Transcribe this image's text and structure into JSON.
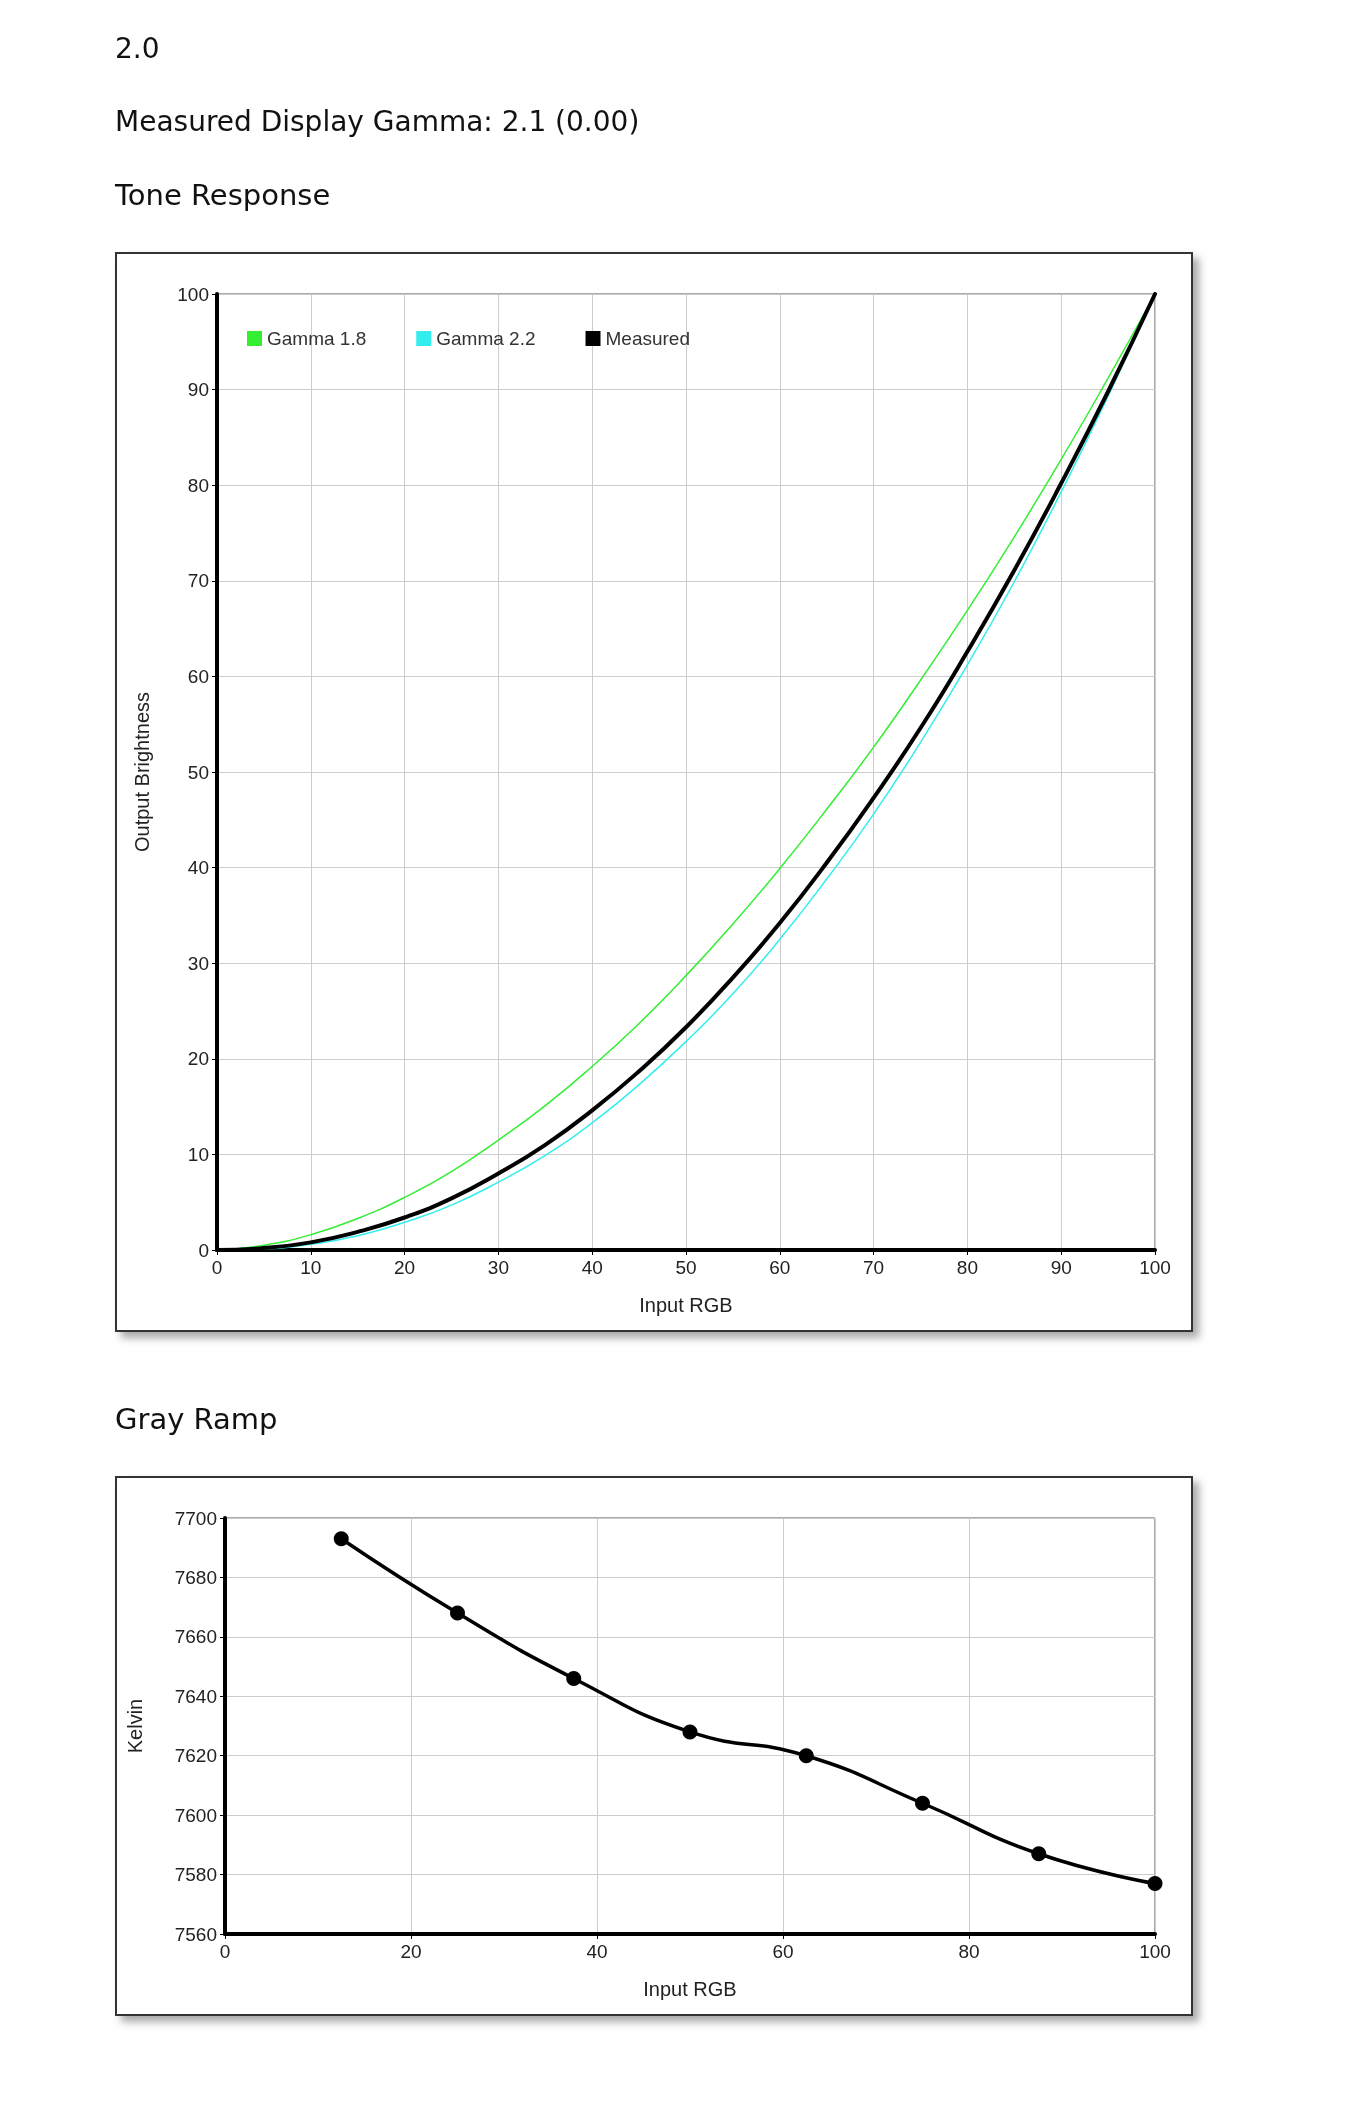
{
  "chart_data": [
    {
      "type": "line",
      "title": "Tone Response",
      "annotations": [
        "2.0",
        "Measured Display Gamma: 2.1 (0.00)"
      ],
      "xlabel": "Input RGB",
      "ylabel": "Output Brightness",
      "x": [
        0,
        5,
        10,
        15,
        20,
        25,
        30,
        35,
        40,
        45,
        50,
        55,
        60,
        65,
        70,
        75,
        80,
        85,
        90,
        95,
        100
      ],
      "series": [
        {
          "name": "Gamma 1.8",
          "color": "#33ee33",
          "values": [
            0,
            0.5,
            1.6,
            3.3,
            5.5,
            8.2,
            11.5,
            15.1,
            19.2,
            23.7,
            28.7,
            34.1,
            39.9,
            46.1,
            52.6,
            59.6,
            66.9,
            74.6,
            82.7,
            91.2,
            100
          ]
        },
        {
          "name": "Gamma 2.2",
          "color": "#33eeee",
          "values": [
            0,
            0.1,
            0.6,
            1.5,
            2.9,
            4.7,
            7.1,
            9.9,
            13.3,
            17.3,
            21.8,
            26.8,
            32.5,
            38.8,
            45.6,
            53.1,
            61.2,
            69.9,
            79.3,
            89.3,
            100
          ]
        },
        {
          "name": "Measured",
          "color": "#000000",
          "values": [
            0,
            0.2,
            0.8,
            1.9,
            3.4,
            5.4,
            8.0,
            11.0,
            14.6,
            18.7,
            23.3,
            28.5,
            34.2,
            40.5,
            47.3,
            54.6,
            62.6,
            71.1,
            80.2,
            89.8,
            100
          ]
        }
      ],
      "xlim": [
        0,
        100
      ],
      "xticks": [
        0,
        10,
        20,
        30,
        40,
        50,
        60,
        70,
        80,
        90,
        100
      ],
      "ylim": [
        0,
        100
      ],
      "yticks": [
        0,
        10,
        20,
        30,
        40,
        50,
        60,
        70,
        80,
        90,
        100
      ],
      "grid": true,
      "legend": "top left",
      "marker": "none"
    },
    {
      "type": "line",
      "title": "Gray Ramp",
      "xlabel": "Input RGB",
      "ylabel": "Kelvin",
      "x": [
        12.5,
        25,
        37.5,
        50,
        62.5,
        75,
        87.5,
        100
      ],
      "series": [
        {
          "color": "#000000",
          "values": [
            7693,
            7668,
            7646,
            7628,
            7620,
            7604,
            7587,
            7577
          ]
        }
      ],
      "xlim": [
        0,
        100
      ],
      "xticks": [
        0,
        20,
        40,
        60,
        80,
        100
      ],
      "ylim": [
        7560,
        7700
      ],
      "yticks": [
        7560,
        7580,
        7600,
        7620,
        7640,
        7660,
        7680,
        7700
      ],
      "grid": true,
      "marker": "circle"
    }
  ]
}
